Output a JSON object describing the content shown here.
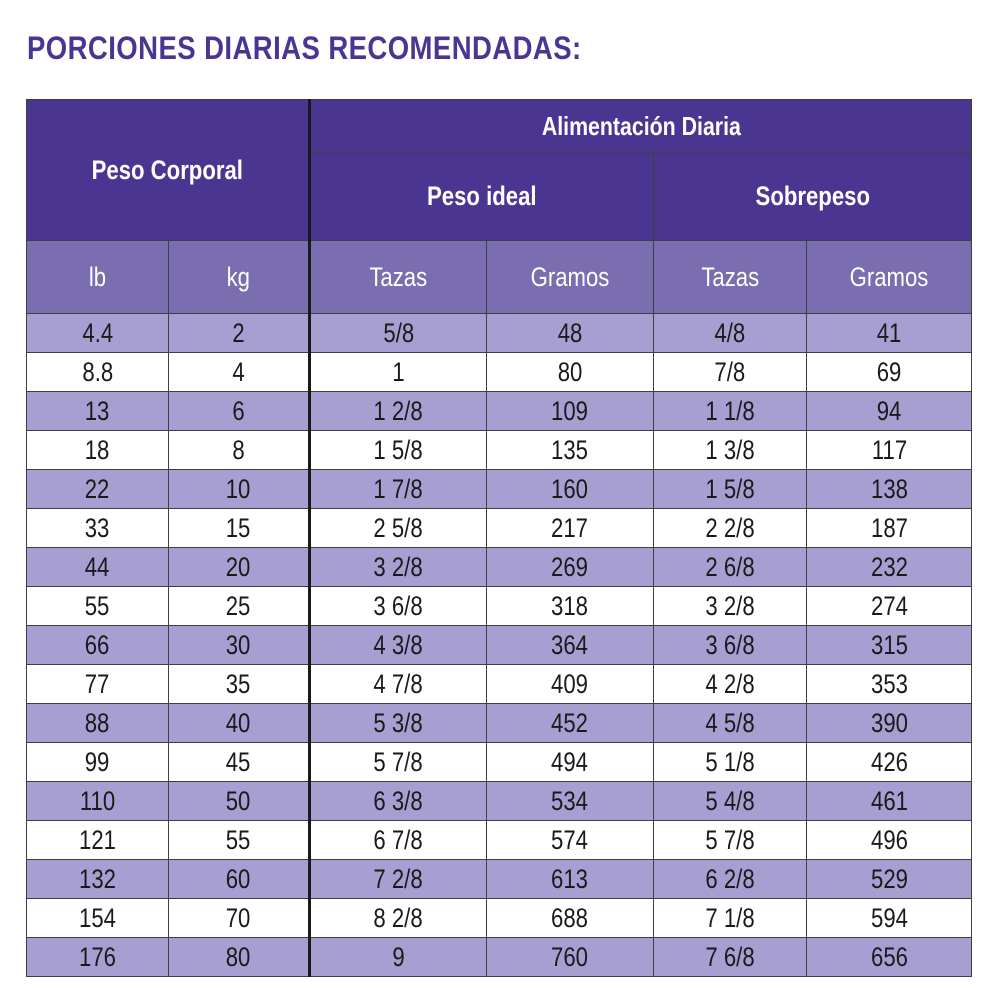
{
  "title": "PORCIONES DIARIAS RECOMENDADAS:",
  "colors": {
    "header_dark": "#4a3591",
    "header_units": "#7a6db0",
    "row_alt": "#a79fd1",
    "row_plain": "#ffffff",
    "title": "#4a3591"
  },
  "table": {
    "group_body_weight": "Peso Corporal",
    "group_daily_feeding": "Alimentación Diaria",
    "sub_ideal": "Peso ideal",
    "sub_overweight": "Sobrepeso",
    "units": [
      "lb",
      "kg",
      "Tazas",
      "Gramos",
      "Tazas",
      "Gramos"
    ],
    "rows": [
      [
        "4.4",
        "2",
        "5/8",
        "48",
        "4/8",
        "41"
      ],
      [
        "8.8",
        "4",
        "1",
        "80",
        "7/8",
        "69"
      ],
      [
        "13",
        "6",
        "1 2/8",
        "109",
        "1 1/8",
        "94"
      ],
      [
        "18",
        "8",
        "1 5/8",
        "135",
        "1 3/8",
        "117"
      ],
      [
        "22",
        "10",
        "1 7/8",
        "160",
        "1 5/8",
        "138"
      ],
      [
        "33",
        "15",
        "2 5/8",
        "217",
        "2 2/8",
        "187"
      ],
      [
        "44",
        "20",
        "3 2/8",
        "269",
        "2 6/8",
        "232"
      ],
      [
        "55",
        "25",
        "3 6/8",
        "318",
        "3 2/8",
        "274"
      ],
      [
        "66",
        "30",
        "4 3/8",
        "364",
        "3 6/8",
        "315"
      ],
      [
        "77",
        "35",
        "4 7/8",
        "409",
        "4 2/8",
        "353"
      ],
      [
        "88",
        "40",
        "5 3/8",
        "452",
        "4 5/8",
        "390"
      ],
      [
        "99",
        "45",
        "5 7/8",
        "494",
        "5 1/8",
        "426"
      ],
      [
        "110",
        "50",
        "6 3/8",
        "534",
        "5 4/8",
        "461"
      ],
      [
        "121",
        "55",
        "6 7/8",
        "574",
        "5 7/8",
        "496"
      ],
      [
        "132",
        "60",
        "7 2/8",
        "613",
        "6 2/8",
        "529"
      ],
      [
        "154",
        "70",
        "8 2/8",
        "688",
        "7 1/8",
        "594"
      ],
      [
        "176",
        "80",
        "9",
        "760",
        "7 6/8",
        "656"
      ]
    ]
  }
}
